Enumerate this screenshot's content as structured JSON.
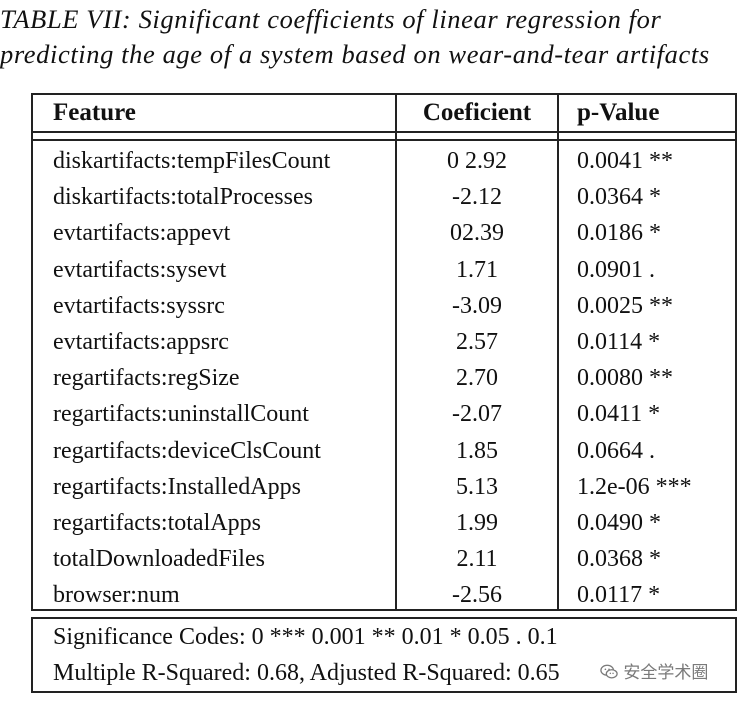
{
  "caption": {
    "line1": "TABLE VII: Significant coefficients of linear regression for",
    "line2": "predicting the age of a system based on wear-and-tear artifacts"
  },
  "table": {
    "headers": [
      "Feature",
      "Coeficient",
      "p-Value"
    ],
    "rows": [
      {
        "feature": "diskartifacts:tempFilesCount",
        "coef": "0 2.92",
        "pvalue": "0.0041 **"
      },
      {
        "feature": "diskartifacts:totalProcesses",
        "coef": "-2.12",
        "pvalue": "0.0364 *"
      },
      {
        "feature": "evtartifacts:appevt",
        "coef": "02.39",
        "pvalue": "0.0186 *"
      },
      {
        "feature": "evtartifacts:sysevt",
        "coef": "1.71",
        "pvalue": "0.0901 ."
      },
      {
        "feature": "evtartifacts:syssrc",
        "coef": "-3.09",
        "pvalue": "0.0025 **"
      },
      {
        "feature": "evtartifacts:appsrc",
        "coef": "2.57",
        "pvalue": "0.0114 *"
      },
      {
        "feature": "regartifacts:regSize",
        "coef": "2.70",
        "pvalue": "0.0080 **"
      },
      {
        "feature": "regartifacts:uninstallCount",
        "coef": "-2.07",
        "pvalue": "0.0411 *"
      },
      {
        "feature": "regartifacts:deviceClsCount",
        "coef": "1.85",
        "pvalue": "0.0664 ."
      },
      {
        "feature": "regartifacts:InstalledApps",
        "coef": "5.13",
        "pvalue": "1.2e-06 ***"
      },
      {
        "feature": "regartifacts:totalApps",
        "coef": "1.99",
        "pvalue": "0.0490 *"
      },
      {
        "feature": "totalDownloadedFiles",
        "coef": "2.11",
        "pvalue": "0.0368 *"
      },
      {
        "feature": "browser:num",
        "coef": "-2.56",
        "pvalue": "0.0117 *"
      }
    ]
  },
  "footer": {
    "codes": "Significance Codes: 0 *** 0.001 ** 0.01 * 0.05 . 0.1",
    "rsquared": "Multiple R-Squared: 0.68, Adjusted R-Squared: 0.65"
  },
  "watermark": {
    "text": "安全学术圈",
    "icon": "wechat-icon"
  }
}
